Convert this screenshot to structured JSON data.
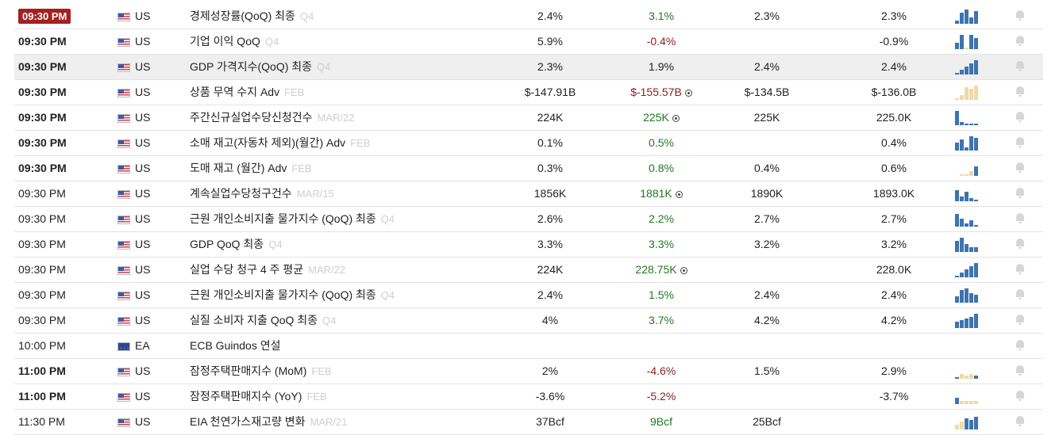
{
  "colors": {
    "positive": "#1f7a1f",
    "negative": "#8b1e1e",
    "badge": "#a52020",
    "spark_blue": "#3e73b0",
    "spark_tan": "#f0d9a6"
  },
  "rows": [
    {
      "time": "09:30 PM",
      "style": "badge",
      "flag": "us",
      "country": "US",
      "event": "경제성장률(QoQ) 최종",
      "period": "Q4",
      "previous": "2.4%",
      "actual": "3.1%",
      "actual_class": "pos",
      "revised": false,
      "forecast": "2.3%",
      "consensus": "2.3%",
      "spark": [
        {
          "h": 4,
          "c": "b"
        },
        {
          "h": 14,
          "c": "b"
        },
        {
          "h": 18,
          "c": "b"
        },
        {
          "h": 8,
          "c": "b"
        },
        {
          "h": 16,
          "c": "b"
        }
      ]
    },
    {
      "time": "09:30 PM",
      "style": "bold",
      "flag": "us",
      "country": "US",
      "event": "기업 이익 QoQ",
      "period": "Q4",
      "previous": "5.9%",
      "actual": "-0.4%",
      "actual_class": "neg",
      "revised": false,
      "forecast": "",
      "consensus": "-0.9%",
      "spark": [
        {
          "h": 8,
          "c": "b"
        },
        {
          "h": 18,
          "c": "b"
        },
        {
          "h": 2,
          "c": "t"
        },
        {
          "h": 18,
          "c": "b"
        },
        {
          "h": 14,
          "c": "b"
        }
      ]
    },
    {
      "time": "09:30 PM",
      "style": "bold",
      "flag": "us",
      "country": "US",
      "event": "GDP 가격지수(QoQ) 최종",
      "period": "Q4",
      "previous": "2.3%",
      "actual": "1.9%",
      "actual_class": "neu",
      "revised": false,
      "forecast": "2.4%",
      "consensus": "2.4%",
      "spark": [
        {
          "h": 2,
          "c": "b"
        },
        {
          "h": 6,
          "c": "b"
        },
        {
          "h": 10,
          "c": "b"
        },
        {
          "h": 14,
          "c": "b"
        },
        {
          "h": 18,
          "c": "b"
        }
      ]
    },
    {
      "time": "09:30 PM",
      "style": "bold",
      "flag": "us",
      "country": "US",
      "event": "상품 무역 수지 Adv",
      "period": "FEB",
      "previous": "$-147.91B",
      "actual": "$-155.57B",
      "actual_class": "neg",
      "revised": true,
      "forecast": "$-134.5B",
      "consensus": "$-136.0B",
      "spark": [
        {
          "h": 2,
          "c": "t"
        },
        {
          "h": 6,
          "c": "t"
        },
        {
          "h": 16,
          "c": "t"
        },
        {
          "h": 14,
          "c": "t"
        },
        {
          "h": 18,
          "c": "t"
        }
      ]
    },
    {
      "time": "09:30 PM",
      "style": "bold",
      "flag": "us",
      "country": "US",
      "event": "주간신규실업수당신청건수",
      "period": "MAR/22",
      "previous": "224K",
      "actual": "225K",
      "actual_class": "pos",
      "revised": true,
      "forecast": "225K",
      "consensus": "225.0K",
      "spark": [
        {
          "h": 18,
          "c": "b"
        },
        {
          "h": 4,
          "c": "b"
        },
        {
          "h": 2,
          "c": "b"
        },
        {
          "h": 2,
          "c": "b"
        },
        {
          "h": 2,
          "c": "b"
        }
      ]
    },
    {
      "time": "09:30 PM",
      "style": "bold",
      "flag": "us",
      "country": "US",
      "event": "소매 재고(자동차 제외)(월간) Adv",
      "period": "FEB",
      "previous": "0.1%",
      "actual": "0.5%",
      "actual_class": "pos",
      "revised": false,
      "forecast": "",
      "consensus": "0.4%",
      "spark": [
        {
          "h": 10,
          "c": "b"
        },
        {
          "h": 14,
          "c": "b"
        },
        {
          "h": 4,
          "c": "b"
        },
        {
          "h": 18,
          "c": "b"
        },
        {
          "h": 16,
          "c": "b"
        }
      ]
    },
    {
      "time": "09:30 PM",
      "style": "bold",
      "flag": "us",
      "country": "US",
      "event": "도매 재고 (월간) Adv",
      "period": "FEB",
      "previous": "0.3%",
      "actual": "0.8%",
      "actual_class": "pos",
      "revised": false,
      "forecast": "0.4%",
      "consensus": "0.6%",
      "spark": [
        {
          "h": 0,
          "c": "b"
        },
        {
          "h": 2,
          "c": "t"
        },
        {
          "h": 2,
          "c": "t"
        },
        {
          "h": 6,
          "c": "t"
        },
        {
          "h": 12,
          "c": "b"
        }
      ]
    },
    {
      "time": "09:30 PM",
      "style": "normal",
      "flag": "us",
      "country": "US",
      "event": "계속실업수당청구건수",
      "period": "MAR/15",
      "previous": "1856K",
      "actual": "1881K",
      "actual_class": "pos",
      "revised": true,
      "forecast": "1890K",
      "consensus": "1893.0K",
      "spark": [
        {
          "h": 14,
          "c": "b"
        },
        {
          "h": 6,
          "c": "b"
        },
        {
          "h": 12,
          "c": "b"
        },
        {
          "h": 4,
          "c": "b"
        },
        {
          "h": 2,
          "c": "b"
        }
      ]
    },
    {
      "time": "09:30 PM",
      "style": "normal",
      "flag": "us",
      "country": "US",
      "event": "근원 개인소비지출 물가지수 (QoQ) 최종",
      "period": "Q4",
      "previous": "2.6%",
      "actual": "2.2%",
      "actual_class": "pos",
      "revised": false,
      "forecast": "2.7%",
      "consensus": "2.7%",
      "spark": [
        {
          "h": 16,
          "c": "b"
        },
        {
          "h": 10,
          "c": "b"
        },
        {
          "h": 4,
          "c": "b"
        },
        {
          "h": 8,
          "c": "b"
        },
        {
          "h": 2,
          "c": "b"
        }
      ]
    },
    {
      "time": "09:30 PM",
      "style": "normal",
      "flag": "us",
      "country": "US",
      "event": "GDP QoQ 최종",
      "period": "Q4",
      "previous": "3.3%",
      "actual": "3.3%",
      "actual_class": "pos",
      "revised": false,
      "forecast": "3.2%",
      "consensus": "3.2%",
      "spark": [
        {
          "h": 14,
          "c": "b"
        },
        {
          "h": 18,
          "c": "b"
        },
        {
          "h": 10,
          "c": "b"
        },
        {
          "h": 6,
          "c": "b"
        },
        {
          "h": 6,
          "c": "b"
        }
      ]
    },
    {
      "time": "09:30 PM",
      "style": "normal",
      "flag": "us",
      "country": "US",
      "event": "실업 수당 청구 4 주 평균",
      "period": "MAR/22",
      "previous": "224K",
      "actual": "228.75K",
      "actual_class": "pos",
      "revised": true,
      "forecast": "",
      "consensus": "228.0K",
      "spark": [
        {
          "h": 2,
          "c": "b"
        },
        {
          "h": 6,
          "c": "b"
        },
        {
          "h": 10,
          "c": "b"
        },
        {
          "h": 14,
          "c": "b"
        },
        {
          "h": 18,
          "c": "b"
        }
      ]
    },
    {
      "time": "09:30 PM",
      "style": "normal",
      "flag": "us",
      "country": "US",
      "event": "근원 개인소비지출 물가지수 (QoQ) 최종",
      "period": "Q4",
      "previous": "2.4%",
      "actual": "1.5%",
      "actual_class": "pos",
      "revised": false,
      "forecast": "2.4%",
      "consensus": "2.4%",
      "spark": [
        {
          "h": 8,
          "c": "b"
        },
        {
          "h": 16,
          "c": "b"
        },
        {
          "h": 18,
          "c": "b"
        },
        {
          "h": 12,
          "c": "b"
        },
        {
          "h": 10,
          "c": "b"
        }
      ]
    },
    {
      "time": "09:30 PM",
      "style": "normal",
      "flag": "us",
      "country": "US",
      "event": "실질 소비자 지출 QoQ 최종",
      "period": "Q4",
      "previous": "4%",
      "actual": "3.7%",
      "actual_class": "pos",
      "revised": false,
      "forecast": "4.2%",
      "consensus": "4.2%",
      "spark": [
        {
          "h": 8,
          "c": "b"
        },
        {
          "h": 10,
          "c": "b"
        },
        {
          "h": 12,
          "c": "b"
        },
        {
          "h": 14,
          "c": "b"
        },
        {
          "h": 18,
          "c": "b"
        }
      ]
    },
    {
      "time": "10:00 PM",
      "style": "normal",
      "flag": "ea",
      "country": "EA",
      "event": "ECB Guindos 연설",
      "period": "",
      "previous": "",
      "actual": "",
      "actual_class": "neu",
      "revised": false,
      "forecast": "",
      "consensus": "",
      "spark": []
    },
    {
      "time": "11:00 PM",
      "style": "bold",
      "flag": "us",
      "country": "US",
      "event": "잠정주택판매지수 (MoM)",
      "period": "FEB",
      "previous": "2%",
      "actual": "-4.6%",
      "actual_class": "neg",
      "revised": false,
      "forecast": "1.5%",
      "consensus": "2.9%",
      "spark": [
        {
          "h": 2,
          "c": "b"
        },
        {
          "h": 6,
          "c": "t"
        },
        {
          "h": 4,
          "c": "t"
        },
        {
          "h": 6,
          "c": "t"
        },
        {
          "h": 4,
          "c": "b"
        }
      ]
    },
    {
      "time": "11:00 PM",
      "style": "bold",
      "flag": "us",
      "country": "US",
      "event": "잠정주택판매지수 (YoY)",
      "period": "FEB",
      "previous": "-3.6%",
      "actual": "-5.2%",
      "actual_class": "neg",
      "revised": false,
      "forecast": "",
      "consensus": "-3.7%",
      "spark": [
        {
          "h": 8,
          "c": "b"
        },
        {
          "h": 4,
          "c": "t"
        },
        {
          "h": 4,
          "c": "t"
        },
        {
          "h": 4,
          "c": "t"
        },
        {
          "h": 4,
          "c": "t"
        }
      ]
    },
    {
      "time": "11:30 PM",
      "style": "normal",
      "flag": "us",
      "country": "US",
      "event": "EIA 천연가스재고량 변화",
      "period": "MAR/21",
      "previous": "37Bcf",
      "actual": "9Bcf",
      "actual_class": "pos",
      "revised": false,
      "forecast": "25Bcf",
      "consensus": "",
      "spark": [
        {
          "h": 6,
          "c": "t"
        },
        {
          "h": 10,
          "c": "t"
        },
        {
          "h": 14,
          "c": "b"
        },
        {
          "h": 12,
          "c": "b"
        },
        {
          "h": 16,
          "c": "b"
        }
      ]
    }
  ]
}
